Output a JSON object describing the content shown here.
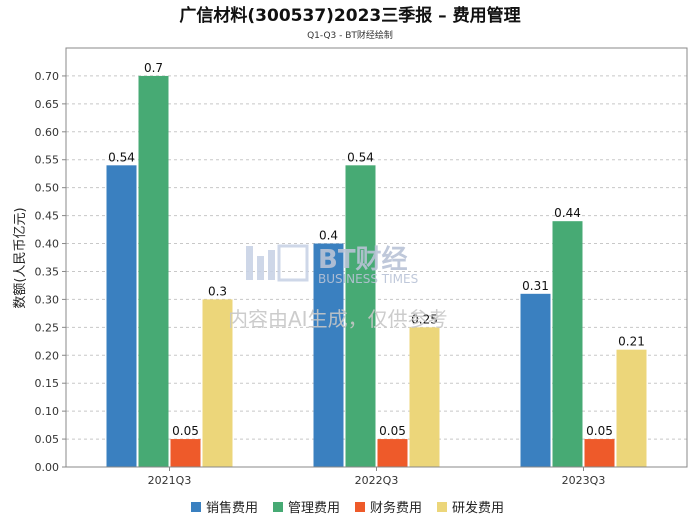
{
  "chart_data": {
    "type": "bar",
    "title": "广信材料(300537)2023三季报 – 费用管理",
    "subtitle": "Q1-Q3 - BT财经绘制",
    "ylabel": "数额(人民币亿元)",
    "xlabel": "",
    "categories": [
      "2021Q3",
      "2022Q3",
      "2023Q3"
    ],
    "ylim": [
      0,
      0.75
    ],
    "yticks": [
      "0.00",
      "0.05",
      "0.10",
      "0.15",
      "0.20",
      "0.25",
      "0.30",
      "0.35",
      "0.40",
      "0.45",
      "0.50",
      "0.55",
      "0.60",
      "0.65",
      "0.70"
    ],
    "grid": true,
    "legend_position": "bottom",
    "series": [
      {
        "name": "销售费用",
        "color": "#3a80c0",
        "values": [
          0.54,
          0.4,
          0.31
        ],
        "labels": [
          "0.54",
          "0.4",
          "0.31"
        ]
      },
      {
        "name": "管理费用",
        "color": "#47aa74",
        "values": [
          0.7,
          0.54,
          0.44
        ],
        "labels": [
          "0.7",
          "0.54",
          "0.44"
        ]
      },
      {
        "name": "财务费用",
        "color": "#ee5a2a",
        "values": [
          0.05,
          0.05,
          0.05
        ],
        "labels": [
          "0.05",
          "0.05",
          "0.05"
        ]
      },
      {
        "name": "研发费用",
        "color": "#ecd67a",
        "values": [
          0.3,
          0.25,
          0.21
        ],
        "labels": [
          "0.3",
          "0.25",
          "0.21"
        ]
      }
    ]
  },
  "watermark": {
    "brand": "BT财经",
    "brand_en": "BUSINESS TIMES",
    "notice": "内容由AI生成，仅供参考"
  }
}
